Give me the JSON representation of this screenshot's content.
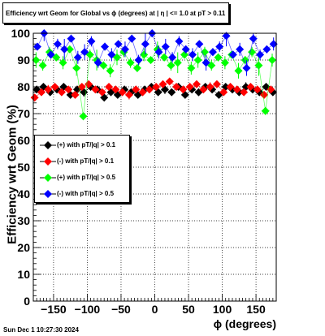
{
  "title": "Efficiency wrt Geom for Global vs ϕ (degrees) at |  η  | <= 1.0 at pT > 0.11",
  "datestamp": "Sun Dec  1 10:27:30 2024",
  "chart_data": {
    "type": "scatter",
    "title": "Efficiency wrt Geom for Global vs ϕ (degrees) at |  η  | <= 1.0 at pT > 0.11",
    "xlabel": "ϕ (degrees)",
    "ylabel": "Efficiency wrt Geom (%)",
    "xlim": [
      -180,
      180
    ],
    "ylim": [
      0,
      100
    ],
    "x_ticks": [
      -150,
      -100,
      -50,
      0,
      50,
      100,
      150
    ],
    "x_tick_labels": [
      "−150",
      "−100",
      "−50",
      "0",
      "50",
      "100",
      "150"
    ],
    "y_ticks": [
      0,
      10,
      20,
      30,
      40,
      50,
      60,
      70,
      80,
      90,
      100
    ],
    "y_tick_labels": [
      "0",
      "10",
      "20",
      "30",
      "40",
      "50",
      "60",
      "70",
      "80",
      "90",
      "100"
    ],
    "grid": true,
    "legend_position": "middle-left",
    "series": [
      {
        "name": "(+) with pT/|q| > 0.1",
        "color": "#000000",
        "marker": "diamond",
        "x": [
          -175,
          -165,
          -155,
          -145,
          -135,
          -125,
          -115,
          -105,
          -95,
          -85,
          -75,
          -65,
          -55,
          -45,
          -35,
          -25,
          -15,
          -5,
          5,
          15,
          25,
          35,
          45,
          55,
          65,
          75,
          85,
          95,
          105,
          115,
          125,
          135,
          145,
          155,
          165,
          175
        ],
        "y": [
          79,
          80,
          78,
          79,
          80,
          77,
          79,
          78,
          80,
          79,
          76,
          78,
          77,
          79,
          78,
          77,
          79,
          80,
          78,
          79,
          78,
          80,
          77,
          79,
          78,
          80,
          79,
          77,
          80,
          79,
          78,
          80,
          79,
          78,
          80,
          78
        ]
      },
      {
        "name": "(-) with pT/|q| > 0.1",
        "color": "#ff0000",
        "marker": "diamond",
        "x": [
          -178,
          -168,
          -158,
          -148,
          -138,
          -128,
          -118,
          -108,
          -98,
          -88,
          -78,
          -68,
          -58,
          -48,
          -38,
          -28,
          -18,
          -8,
          2,
          12,
          22,
          32,
          42,
          52,
          62,
          72,
          82,
          92,
          102,
          112,
          122,
          132,
          142,
          152,
          162,
          172
        ],
        "y": [
          76,
          78,
          79,
          80,
          78,
          79,
          77,
          80,
          81,
          79,
          78,
          80,
          79,
          78,
          77,
          79,
          78,
          79,
          80,
          81,
          82,
          80,
          79,
          80,
          81,
          79,
          80,
          81,
          78,
          80,
          79,
          78,
          80,
          79,
          77,
          79
        ]
      },
      {
        "name": "(+) with pT/|q| > 0.5",
        "color": "#00ff00",
        "marker": "diamond",
        "x": [
          -176,
          -166,
          -156,
          -146,
          -136,
          -126,
          -116,
          -106,
          -96,
          -86,
          -76,
          -66,
          -56,
          -46,
          -36,
          -26,
          -16,
          -6,
          4,
          14,
          24,
          34,
          44,
          54,
          64,
          74,
          84,
          94,
          104,
          114,
          124,
          134,
          144,
          154,
          164,
          174
        ],
        "y": [
          90,
          88,
          93,
          91,
          89,
          94,
          87,
          69,
          92,
          90,
          88,
          86,
          91,
          93,
          89,
          87,
          92,
          90,
          94,
          91,
          88,
          89,
          92,
          87,
          90,
          93,
          88,
          91,
          89,
          92,
          86,
          90,
          93,
          88,
          71,
          90
        ]
      },
      {
        "name": "(-) with pT/|q| > 0.5",
        "color": "#0000ff",
        "marker": "diamond",
        "x": [
          -174,
          -164,
          -154,
          -144,
          -134,
          -124,
          -114,
          -104,
          -94,
          -84,
          -74,
          -64,
          -54,
          -44,
          -34,
          -24,
          -14,
          -4,
          6,
          16,
          26,
          36,
          46,
          56,
          66,
          76,
          86,
          96,
          106,
          116,
          126,
          136,
          146,
          156,
          166,
          176
        ],
        "y": [
          95,
          100,
          92,
          96,
          94,
          98,
          91,
          93,
          97,
          89,
          95,
          92,
          96,
          94,
          98,
          90,
          96,
          100,
          93,
          95,
          91,
          97,
          94,
          92,
          96,
          89,
          93,
          95,
          99,
          92,
          94,
          87,
          98,
          92,
          94,
          96
        ]
      }
    ]
  }
}
